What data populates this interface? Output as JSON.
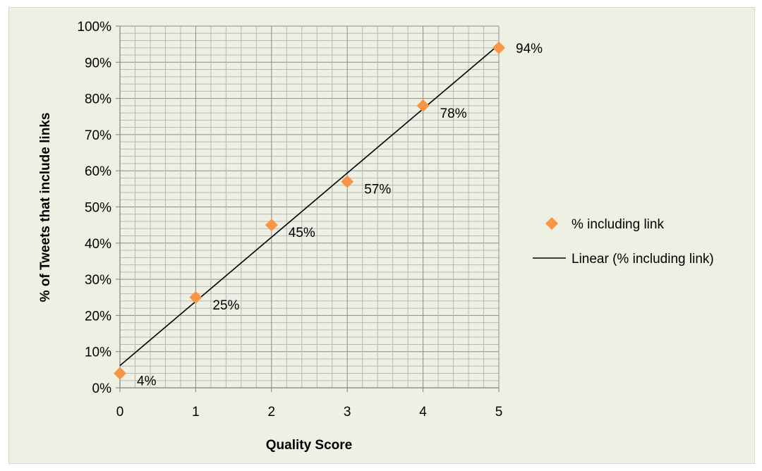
{
  "chart_data": {
    "type": "scatter",
    "title": "",
    "xlabel": "Quality Score",
    "ylabel": "% of Tweets that include links",
    "xlim": [
      0,
      5
    ],
    "ylim": [
      0,
      100
    ],
    "x_ticks": [
      "0",
      "1",
      "2",
      "3",
      "4",
      "5"
    ],
    "y_ticks": [
      "0%",
      "10%",
      "20%",
      "30%",
      "40%",
      "50%",
      "60%",
      "70%",
      "80%",
      "90%",
      "100%"
    ],
    "grid": true,
    "legend_position": "right",
    "series": [
      {
        "name": "% including link",
        "color": "#f79646",
        "marker": "diamond",
        "x": [
          0,
          1,
          2,
          3,
          4,
          5
        ],
        "y": [
          4,
          25,
          45,
          57,
          78,
          94
        ],
        "data_labels": [
          "4%",
          "25%",
          "45%",
          "57%",
          "78%",
          "94%"
        ]
      }
    ],
    "trendline": {
      "name": "Linear (% including link)",
      "color": "#000000",
      "type": "linear"
    }
  }
}
